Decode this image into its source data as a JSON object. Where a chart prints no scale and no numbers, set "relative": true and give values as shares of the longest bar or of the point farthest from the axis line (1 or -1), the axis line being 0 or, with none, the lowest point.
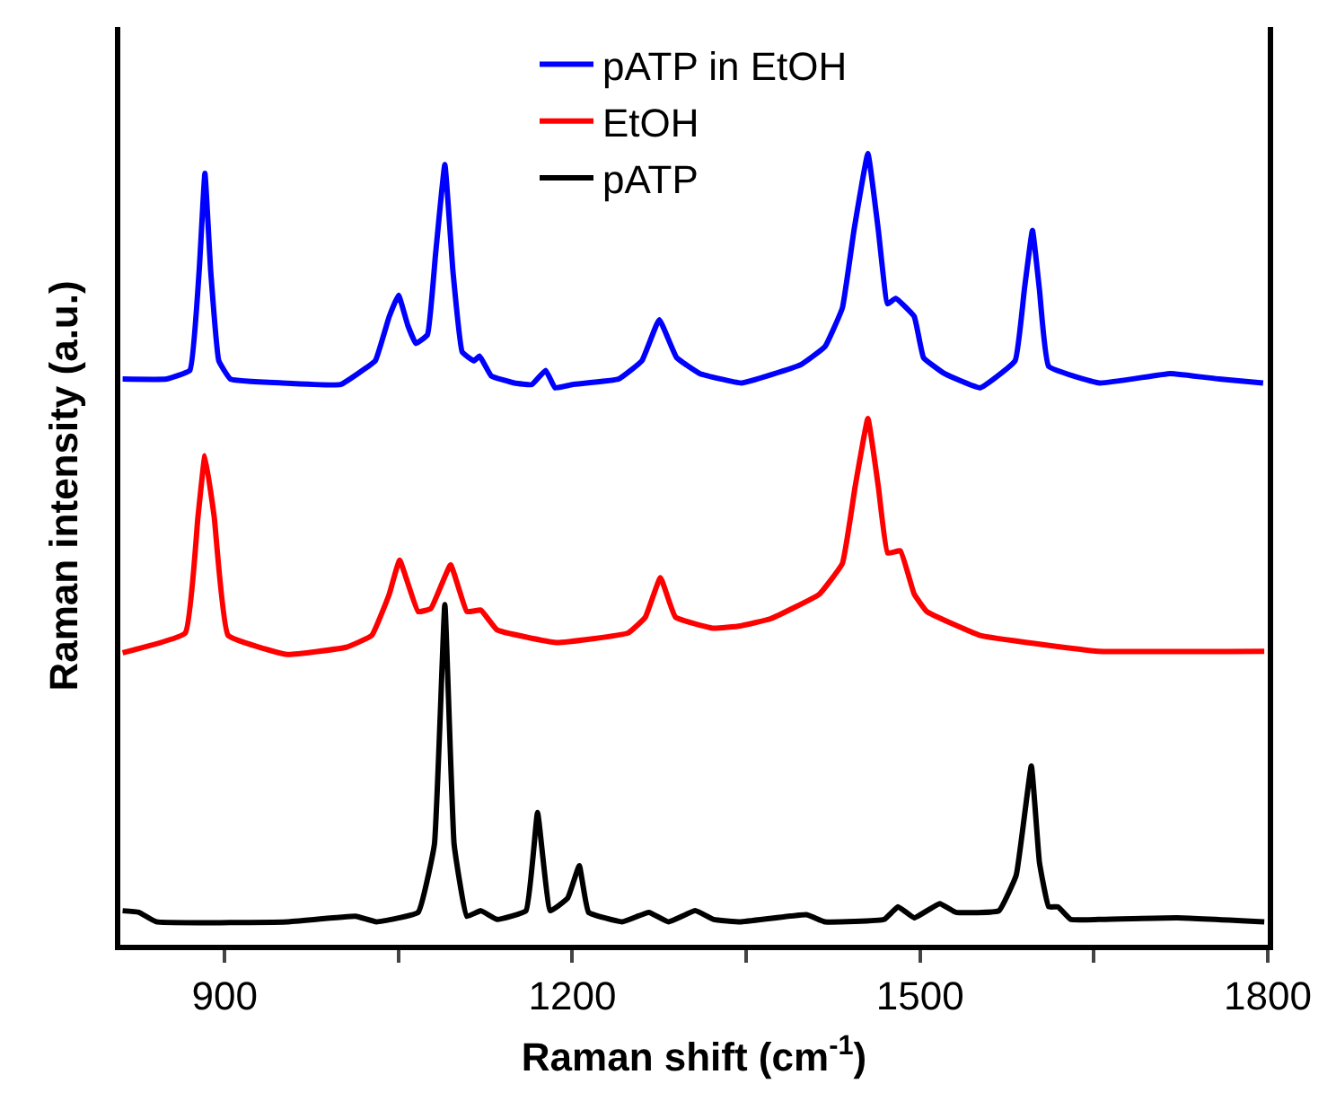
{
  "chart_data": {
    "type": "line",
    "relative": true,
    "xlabel": "Raman shift (cm$^{-1}$)",
    "ylabel": "Raman intensity (a.u.)",
    "xlim": [
      810,
      1800
    ],
    "xticks": [
      900,
      {
        "value": 1050,
        "label": null
      },
      1200,
      {
        "value": 1350,
        "label": null
      },
      1500,
      {
        "value": 1650,
        "label": null
      },
      1800
    ],
    "legend": "top",
    "line_style": "solid",
    "marker": "none",
    "series": [
      {
        "name": "pATP in EtOH",
        "color": "#0000ff",
        "x": [
          812,
          850,
          870,
          878,
          883,
          888,
          895,
          905,
          950,
          1000,
          1015,
          1030,
          1042,
          1050,
          1058,
          1065,
          1075,
          1082,
          1090,
          1097,
          1105,
          1115,
          1120,
          1130,
          1150,
          1165,
          1177,
          1185,
          1200,
          1240,
          1260,
          1275,
          1290,
          1310,
          1346,
          1397,
          1418,
          1433,
          1443,
          1455,
          1464,
          1472,
          1479,
          1495,
          1503,
          1521,
          1552,
          1582,
          1590,
          1597,
          1603,
          1611,
          1655,
          1716,
          1758,
          1796
        ],
        "values": [
          0.715,
          0.715,
          0.726,
          0.851,
          0.975,
          0.851,
          0.738,
          0.715,
          0.71,
          0.708,
          0.722,
          0.738,
          0.794,
          0.821,
          0.783,
          0.76,
          0.771,
          0.873,
          0.986,
          0.851,
          0.749,
          0.738,
          0.744,
          0.719,
          0.71,
          0.708,
          0.726,
          0.704,
          0.708,
          0.715,
          0.738,
          0.79,
          0.742,
          0.722,
          0.71,
          0.733,
          0.756,
          0.805,
          0.903,
          1.0,
          0.903,
          0.81,
          0.817,
          0.794,
          0.742,
          0.722,
          0.704,
          0.738,
          0.828,
          0.903,
          0.828,
          0.731,
          0.71,
          0.722,
          0.715,
          0.71
        ]
      },
      {
        "name": "EtOH",
        "color": "#ff0000",
        "x": [
          812,
          866,
          877,
          883,
          891,
          903,
          954,
          1005,
          1027,
          1042,
          1051,
          1067,
          1078,
          1095,
          1109,
          1121,
          1135,
          1186,
          1248,
          1263,
          1276,
          1289,
          1322,
          1345,
          1371,
          1413,
          1433,
          1444,
          1455,
          1464,
          1472,
          1483,
          1495,
          1506,
          1552,
          1603,
          1654,
          1797
        ],
        "values": [
          0.369,
          0.394,
          0.541,
          0.618,
          0.541,
          0.391,
          0.367,
          0.376,
          0.391,
          0.443,
          0.486,
          0.421,
          0.425,
          0.48,
          0.421,
          0.423,
          0.398,
          0.382,
          0.394,
          0.414,
          0.464,
          0.414,
          0.4,
          0.403,
          0.412,
          0.443,
          0.482,
          0.579,
          0.665,
          0.579,
          0.495,
          0.498,
          0.443,
          0.421,
          0.391,
          0.38,
          0.371,
          0.371
        ]
      },
      {
        "name": "pATP",
        "color": "#000000",
        "x": [
          812,
          826,
          841,
          954,
          1013,
          1031,
          1067,
          1081,
          1090,
          1098,
          1109,
          1121,
          1135,
          1160,
          1170,
          1181,
          1196,
          1206,
          1214,
          1243,
          1266,
          1283,
          1306,
          1322,
          1345,
          1402,
          1418,
          1469,
          1481,
          1495,
          1517,
          1531,
          1568,
          1583,
          1596,
          1603,
          1611,
          1619,
          1630,
          1654,
          1722,
          1797
        ],
        "values": [
          0.043,
          0.041,
          0.029,
          0.029,
          0.036,
          0.029,
          0.041,
          0.127,
          0.43,
          0.127,
          0.036,
          0.043,
          0.032,
          0.043,
          0.167,
          0.043,
          0.059,
          0.1,
          0.041,
          0.029,
          0.041,
          0.029,
          0.043,
          0.032,
          0.029,
          0.038,
          0.029,
          0.032,
          0.048,
          0.034,
          0.052,
          0.041,
          0.043,
          0.088,
          0.226,
          0.104,
          0.048,
          0.048,
          0.032,
          0.032,
          0.034,
          0.029
        ]
      }
    ]
  }
}
